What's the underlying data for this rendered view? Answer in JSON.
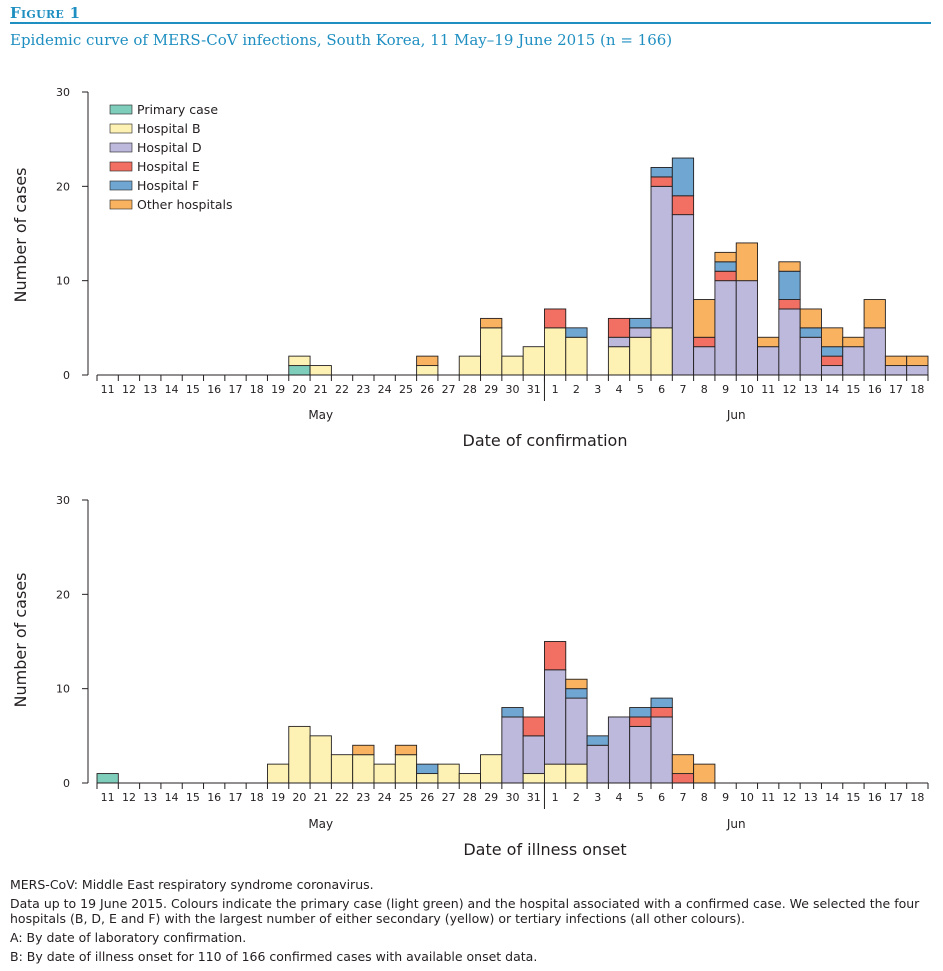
{
  "figure": {
    "label": "Figure 1",
    "title": "Epidemic curve of MERS-CoV infections, South Korea, 11 May–19 June 2015 (n = 166)"
  },
  "legend": [
    {
      "name": "Primary case",
      "color": "#7fcdbb"
    },
    {
      "name": "Hospital B",
      "color": "#fdf2b3"
    },
    {
      "name": "Hospital D",
      "color": "#bcb9dc"
    },
    {
      "name": "Hospital E",
      "color": "#f27063"
    },
    {
      "name": "Hospital F",
      "color": "#6fa7d2"
    },
    {
      "name": "Other hospitals",
      "color": "#f9b25f"
    }
  ],
  "chart_data": [
    {
      "type": "bar",
      "stacked": true,
      "xlabel": "Date of confirmation",
      "ylabel": "Number of cases",
      "ylim": [
        0,
        30
      ],
      "yticks": [
        0,
        10,
        20,
        30
      ],
      "month_labels": [
        "May",
        "Jun"
      ],
      "categories": [
        "11",
        "12",
        "13",
        "14",
        "15",
        "16",
        "17",
        "18",
        "19",
        "20",
        "21",
        "22",
        "23",
        "24",
        "25",
        "26",
        "27",
        "28",
        "29",
        "30",
        "31",
        "1",
        "2",
        "3",
        "4",
        "5",
        "6",
        "7",
        "8",
        "9",
        "10",
        "11",
        "12",
        "13",
        "14",
        "15",
        "16",
        "17",
        "18"
      ],
      "series": [
        {
          "name": "Primary case",
          "values": [
            0,
            0,
            0,
            0,
            0,
            0,
            0,
            0,
            0,
            1,
            0,
            0,
            0,
            0,
            0,
            0,
            0,
            0,
            0,
            0,
            0,
            0,
            0,
            0,
            0,
            0,
            0,
            0,
            0,
            0,
            0,
            0,
            0,
            0,
            0,
            0,
            0,
            0,
            0
          ]
        },
        {
          "name": "Hospital B",
          "values": [
            0,
            0,
            0,
            0,
            0,
            0,
            0,
            0,
            0,
            1,
            1,
            0,
            0,
            0,
            0,
            1,
            0,
            2,
            5,
            2,
            3,
            5,
            4,
            0,
            3,
            4,
            5,
            0,
            0,
            0,
            0,
            0,
            0,
            0,
            0,
            0,
            0,
            0,
            0
          ]
        },
        {
          "name": "Hospital D",
          "values": [
            0,
            0,
            0,
            0,
            0,
            0,
            0,
            0,
            0,
            0,
            0,
            0,
            0,
            0,
            0,
            0,
            0,
            0,
            0,
            0,
            0,
            0,
            0,
            0,
            1,
            1,
            15,
            17,
            3,
            10,
            10,
            3,
            7,
            4,
            1,
            3,
            5,
            1,
            1
          ]
        },
        {
          "name": "Hospital E",
          "values": [
            0,
            0,
            0,
            0,
            0,
            0,
            0,
            0,
            0,
            0,
            0,
            0,
            0,
            0,
            0,
            0,
            0,
            0,
            0,
            0,
            0,
            2,
            0,
            0,
            2,
            0,
            1,
            2,
            1,
            1,
            0,
            0,
            1,
            0,
            1,
            0,
            0,
            0,
            0
          ]
        },
        {
          "name": "Hospital F",
          "values": [
            0,
            0,
            0,
            0,
            0,
            0,
            0,
            0,
            0,
            0,
            0,
            0,
            0,
            0,
            0,
            0,
            0,
            0,
            0,
            0,
            0,
            0,
            1,
            0,
            0,
            1,
            1,
            4,
            0,
            1,
            0,
            0,
            3,
            1,
            1,
            0,
            0,
            0,
            0
          ]
        },
        {
          "name": "Other hospitals",
          "values": [
            0,
            0,
            0,
            0,
            0,
            0,
            0,
            0,
            0,
            0,
            0,
            0,
            0,
            0,
            0,
            1,
            0,
            0,
            1,
            0,
            0,
            0,
            0,
            0,
            0,
            0,
            0,
            0,
            4,
            1,
            4,
            1,
            1,
            2,
            2,
            1,
            3,
            1,
            1
          ]
        }
      ]
    },
    {
      "type": "bar",
      "stacked": true,
      "xlabel": "Date of illness onset",
      "ylabel": "Number of cases",
      "ylim": [
        0,
        30
      ],
      "yticks": [
        0,
        10,
        20,
        30
      ],
      "month_labels": [
        "May",
        "Jun"
      ],
      "categories": [
        "11",
        "12",
        "13",
        "14",
        "15",
        "16",
        "17",
        "18",
        "19",
        "20",
        "21",
        "22",
        "23",
        "24",
        "25",
        "26",
        "27",
        "28",
        "29",
        "30",
        "31",
        "1",
        "2",
        "3",
        "4",
        "5",
        "6",
        "7",
        "8",
        "9",
        "10",
        "11",
        "12",
        "13",
        "14",
        "15",
        "16",
        "17",
        "18"
      ],
      "series": [
        {
          "name": "Primary case",
          "values": [
            1,
            0,
            0,
            0,
            0,
            0,
            0,
            0,
            0,
            0,
            0,
            0,
            0,
            0,
            0,
            0,
            0,
            0,
            0,
            0,
            0,
            0,
            0,
            0,
            0,
            0,
            0,
            0,
            0,
            0,
            0,
            0,
            0,
            0,
            0,
            0,
            0,
            0,
            0
          ]
        },
        {
          "name": "Hospital B",
          "values": [
            0,
            0,
            0,
            0,
            0,
            0,
            0,
            0,
            2,
            6,
            5,
            3,
            3,
            2,
            3,
            1,
            2,
            1,
            3,
            0,
            1,
            2,
            2,
            0,
            0,
            0,
            0,
            0,
            0,
            0,
            0,
            0,
            0,
            0,
            0,
            0,
            0,
            0,
            0
          ]
        },
        {
          "name": "Hospital D",
          "values": [
            0,
            0,
            0,
            0,
            0,
            0,
            0,
            0,
            0,
            0,
            0,
            0,
            0,
            0,
            0,
            0,
            0,
            0,
            0,
            7,
            4,
            10,
            7,
            4,
            7,
            6,
            7,
            0,
            0,
            0,
            0,
            0,
            0,
            0,
            0,
            0,
            0,
            0,
            0
          ]
        },
        {
          "name": "Hospital E",
          "values": [
            0,
            0,
            0,
            0,
            0,
            0,
            0,
            0,
            0,
            0,
            0,
            0,
            0,
            0,
            0,
            0,
            0,
            0,
            0,
            0,
            2,
            3,
            0,
            0,
            0,
            1,
            1,
            1,
            0,
            0,
            0,
            0,
            0,
            0,
            0,
            0,
            0,
            0,
            0
          ]
        },
        {
          "name": "Hospital F",
          "values": [
            0,
            0,
            0,
            0,
            0,
            0,
            0,
            0,
            0,
            0,
            0,
            0,
            0,
            0,
            0,
            1,
            0,
            0,
            0,
            1,
            0,
            0,
            1,
            1,
            0,
            1,
            1,
            0,
            0,
            0,
            0,
            0,
            0,
            0,
            0,
            0,
            0,
            0,
            0
          ]
        },
        {
          "name": "Other hospitals",
          "values": [
            0,
            0,
            0,
            0,
            0,
            0,
            0,
            0,
            0,
            0,
            0,
            0,
            1,
            0,
            1,
            0,
            0,
            0,
            0,
            0,
            0,
            0,
            1,
            0,
            0,
            0,
            0,
            2,
            2,
            0,
            0,
            0,
            0,
            0,
            0,
            0,
            0,
            0,
            0
          ]
        }
      ]
    }
  ],
  "notes": [
    "MERS-CoV: Middle East respiratory syndrome coronavirus.",
    "Data up to 19 June 2015. Colours indicate the primary case (light green) and the hospital associated with a confirmed case. We selected the four hospitals (B, D, E and F) with the largest number of either secondary (yellow) or tertiary infections (all other colours).",
    "A: By date of laboratory confirmation.",
    "B: By date of illness onset for 110 of 166 confirmed cases with available onset data."
  ]
}
